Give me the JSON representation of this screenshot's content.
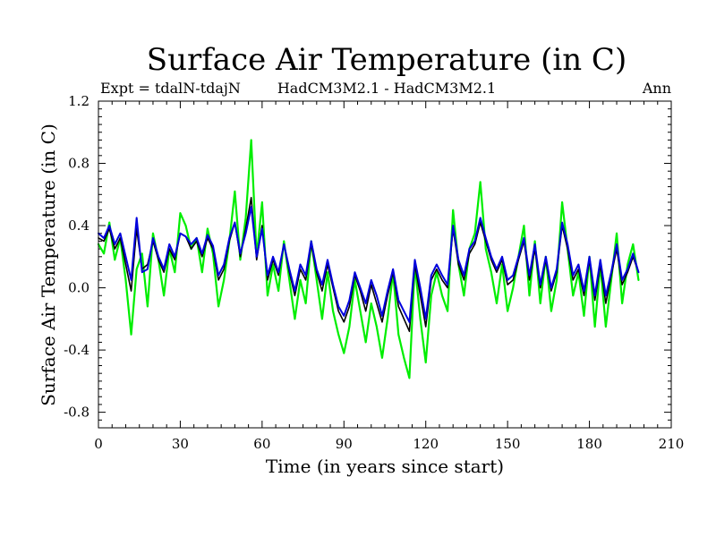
{
  "chart_data": {
    "type": "line",
    "title": "Surface Air Temperature (in C)",
    "subtitle_left": "Expt = tdalN-tdajN",
    "subtitle_center": "HadCM3M2.1 - HadCM3M2.1",
    "subtitle_right": "Ann",
    "xlabel": "Time (in years since start)",
    "ylabel": "Surface Air Temperature (in C)",
    "xlim": [
      0,
      210
    ],
    "ylim": [
      -0.9,
      1.2
    ],
    "xticks": [
      0,
      30,
      60,
      90,
      120,
      150,
      180,
      210
    ],
    "xtick_labels": [
      "0",
      "30",
      "60",
      "90",
      "120",
      "150",
      "180",
      "210"
    ],
    "yticks": [
      -0.8,
      -0.4,
      0.0,
      0.4,
      0.8,
      1.2
    ],
    "ytick_labels": [
      "-0.8",
      "-0.4",
      "0.0",
      "0.4",
      "0.8",
      "1.2"
    ],
    "series": [
      {
        "name": "green",
        "color": "#00ee00",
        "x": [
          0,
          2,
          4,
          6,
          8,
          10,
          12,
          14,
          16,
          18,
          20,
          22,
          24,
          26,
          28,
          30,
          32,
          34,
          36,
          38,
          40,
          42,
          44,
          46,
          48,
          50,
          52,
          54,
          56,
          58,
          60,
          62,
          64,
          66,
          68,
          70,
          72,
          74,
          76,
          78,
          80,
          82,
          84,
          86,
          88,
          90,
          92,
          94,
          96,
          98,
          100,
          102,
          104,
          106,
          108,
          110,
          112,
          114,
          116,
          118,
          120,
          122,
          124,
          126,
          128,
          130,
          132,
          134,
          136,
          138,
          140,
          142,
          144,
          146,
          148,
          150,
          152,
          154,
          156,
          158,
          160,
          162,
          164,
          166,
          168,
          170,
          172,
          174,
          176,
          178,
          180,
          182,
          184,
          186,
          188,
          190,
          192,
          194,
          196,
          198
        ],
        "values": [
          0.28,
          0.22,
          0.42,
          0.18,
          0.32,
          0.05,
          -0.3,
          0.12,
          0.22,
          -0.12,
          0.35,
          0.18,
          -0.05,
          0.25,
          0.1,
          0.48,
          0.4,
          0.25,
          0.32,
          0.1,
          0.38,
          0.22,
          -0.12,
          0.05,
          0.3,
          0.62,
          0.18,
          0.45,
          0.95,
          0.2,
          0.55,
          -0.05,
          0.15,
          -0.02,
          0.3,
          0.05,
          -0.2,
          0.05,
          -0.1,
          0.3,
          0.05,
          -0.2,
          0.1,
          -0.15,
          -0.3,
          -0.42,
          -0.25,
          0.05,
          -0.15,
          -0.35,
          -0.1,
          -0.25,
          -0.45,
          -0.2,
          0.1,
          -0.3,
          -0.45,
          -0.58,
          0.15,
          -0.2,
          -0.48,
          -0.05,
          0.1,
          -0.05,
          -0.15,
          0.5,
          0.15,
          -0.05,
          0.25,
          0.35,
          0.68,
          0.25,
          0.1,
          -0.1,
          0.15,
          -0.15,
          0.0,
          0.2,
          0.4,
          -0.05,
          0.3,
          -0.1,
          0.2,
          -0.15,
          0.05,
          0.55,
          0.25,
          -0.05,
          0.1,
          -0.18,
          0.2,
          -0.25,
          0.15,
          -0.25,
          0.05,
          0.35,
          -0.1,
          0.15,
          0.28,
          0.05
        ]
      },
      {
        "name": "black",
        "color": "#000000",
        "x": [
          0,
          2,
          4,
          6,
          8,
          10,
          12,
          14,
          16,
          18,
          20,
          22,
          24,
          26,
          28,
          30,
          32,
          34,
          36,
          38,
          40,
          42,
          44,
          46,
          48,
          50,
          52,
          54,
          56,
          58,
          60,
          62,
          64,
          66,
          68,
          70,
          72,
          74,
          76,
          78,
          80,
          82,
          84,
          86,
          88,
          90,
          92,
          94,
          96,
          98,
          100,
          102,
          104,
          106,
          108,
          110,
          112,
          114,
          116,
          118,
          120,
          122,
          124,
          126,
          128,
          130,
          132,
          134,
          136,
          138,
          140,
          142,
          144,
          146,
          148,
          150,
          152,
          154,
          156,
          158,
          160,
          162,
          164,
          166,
          168,
          170,
          172,
          174,
          176,
          178,
          180,
          182,
          184,
          186,
          188,
          190,
          192,
          194,
          196,
          198
        ],
        "values": [
          0.32,
          0.3,
          0.38,
          0.25,
          0.32,
          0.15,
          -0.02,
          0.38,
          0.12,
          0.15,
          0.3,
          0.18,
          0.1,
          0.25,
          0.18,
          0.35,
          0.33,
          0.25,
          0.3,
          0.2,
          0.32,
          0.25,
          0.05,
          0.12,
          0.3,
          0.42,
          0.2,
          0.38,
          0.58,
          0.18,
          0.4,
          0.05,
          0.18,
          0.08,
          0.28,
          0.1,
          -0.05,
          0.12,
          0.05,
          0.28,
          0.1,
          -0.02,
          0.15,
          0.0,
          -0.15,
          -0.22,
          -0.12,
          0.08,
          -0.02,
          -0.15,
          0.02,
          -0.1,
          -0.22,
          -0.05,
          0.1,
          -0.12,
          -0.2,
          -0.28,
          0.15,
          -0.05,
          -0.25,
          0.05,
          0.12,
          0.05,
          0.0,
          0.38,
          0.15,
          0.05,
          0.22,
          0.28,
          0.42,
          0.3,
          0.18,
          0.1,
          0.18,
          0.02,
          0.05,
          0.18,
          0.3,
          0.05,
          0.25,
          0.0,
          0.18,
          -0.02,
          0.1,
          0.4,
          0.25,
          0.05,
          0.12,
          -0.05,
          0.18,
          -0.08,
          0.15,
          -0.1,
          0.08,
          0.25,
          0.02,
          0.1,
          0.2,
          0.1
        ]
      },
      {
        "name": "blue",
        "color": "#0000dd",
        "x": [
          0,
          2,
          4,
          6,
          8,
          10,
          12,
          14,
          16,
          18,
          20,
          22,
          24,
          26,
          28,
          30,
          32,
          34,
          36,
          38,
          40,
          42,
          44,
          46,
          48,
          50,
          52,
          54,
          56,
          58,
          60,
          62,
          64,
          66,
          68,
          70,
          72,
          74,
          76,
          78,
          80,
          82,
          84,
          86,
          88,
          90,
          92,
          94,
          96,
          98,
          100,
          102,
          104,
          106,
          108,
          110,
          112,
          114,
          116,
          118,
          120,
          122,
          124,
          126,
          128,
          130,
          132,
          134,
          136,
          138,
          140,
          142,
          144,
          146,
          148,
          150,
          152,
          154,
          156,
          158,
          160,
          162,
          164,
          166,
          168,
          170,
          172,
          174,
          176,
          178,
          180,
          182,
          184,
          186,
          188,
          190,
          192,
          194,
          196,
          198
        ],
        "values": [
          0.35,
          0.32,
          0.4,
          0.28,
          0.35,
          0.2,
          0.05,
          0.45,
          0.1,
          0.12,
          0.32,
          0.2,
          0.12,
          0.28,
          0.2,
          0.35,
          0.33,
          0.28,
          0.32,
          0.22,
          0.34,
          0.27,
          0.08,
          0.15,
          0.32,
          0.42,
          0.22,
          0.35,
          0.52,
          0.2,
          0.38,
          0.08,
          0.2,
          0.1,
          0.28,
          0.12,
          -0.02,
          0.15,
          0.08,
          0.3,
          0.12,
          0.02,
          0.18,
          0.02,
          -0.12,
          -0.18,
          -0.08,
          0.1,
          0.0,
          -0.1,
          0.05,
          -0.05,
          -0.18,
          -0.02,
          0.12,
          -0.08,
          -0.15,
          -0.22,
          0.18,
          0.0,
          -0.2,
          0.08,
          0.15,
          0.08,
          0.02,
          0.4,
          0.18,
          0.08,
          0.25,
          0.3,
          0.45,
          0.32,
          0.2,
          0.12,
          0.2,
          0.05,
          0.08,
          0.2,
          0.32,
          0.08,
          0.28,
          0.02,
          0.2,
          0.0,
          0.12,
          0.42,
          0.28,
          0.08,
          0.15,
          -0.02,
          0.2,
          -0.05,
          0.18,
          -0.05,
          0.1,
          0.28,
          0.05,
          0.12,
          0.22,
          0.1
        ]
      }
    ]
  }
}
